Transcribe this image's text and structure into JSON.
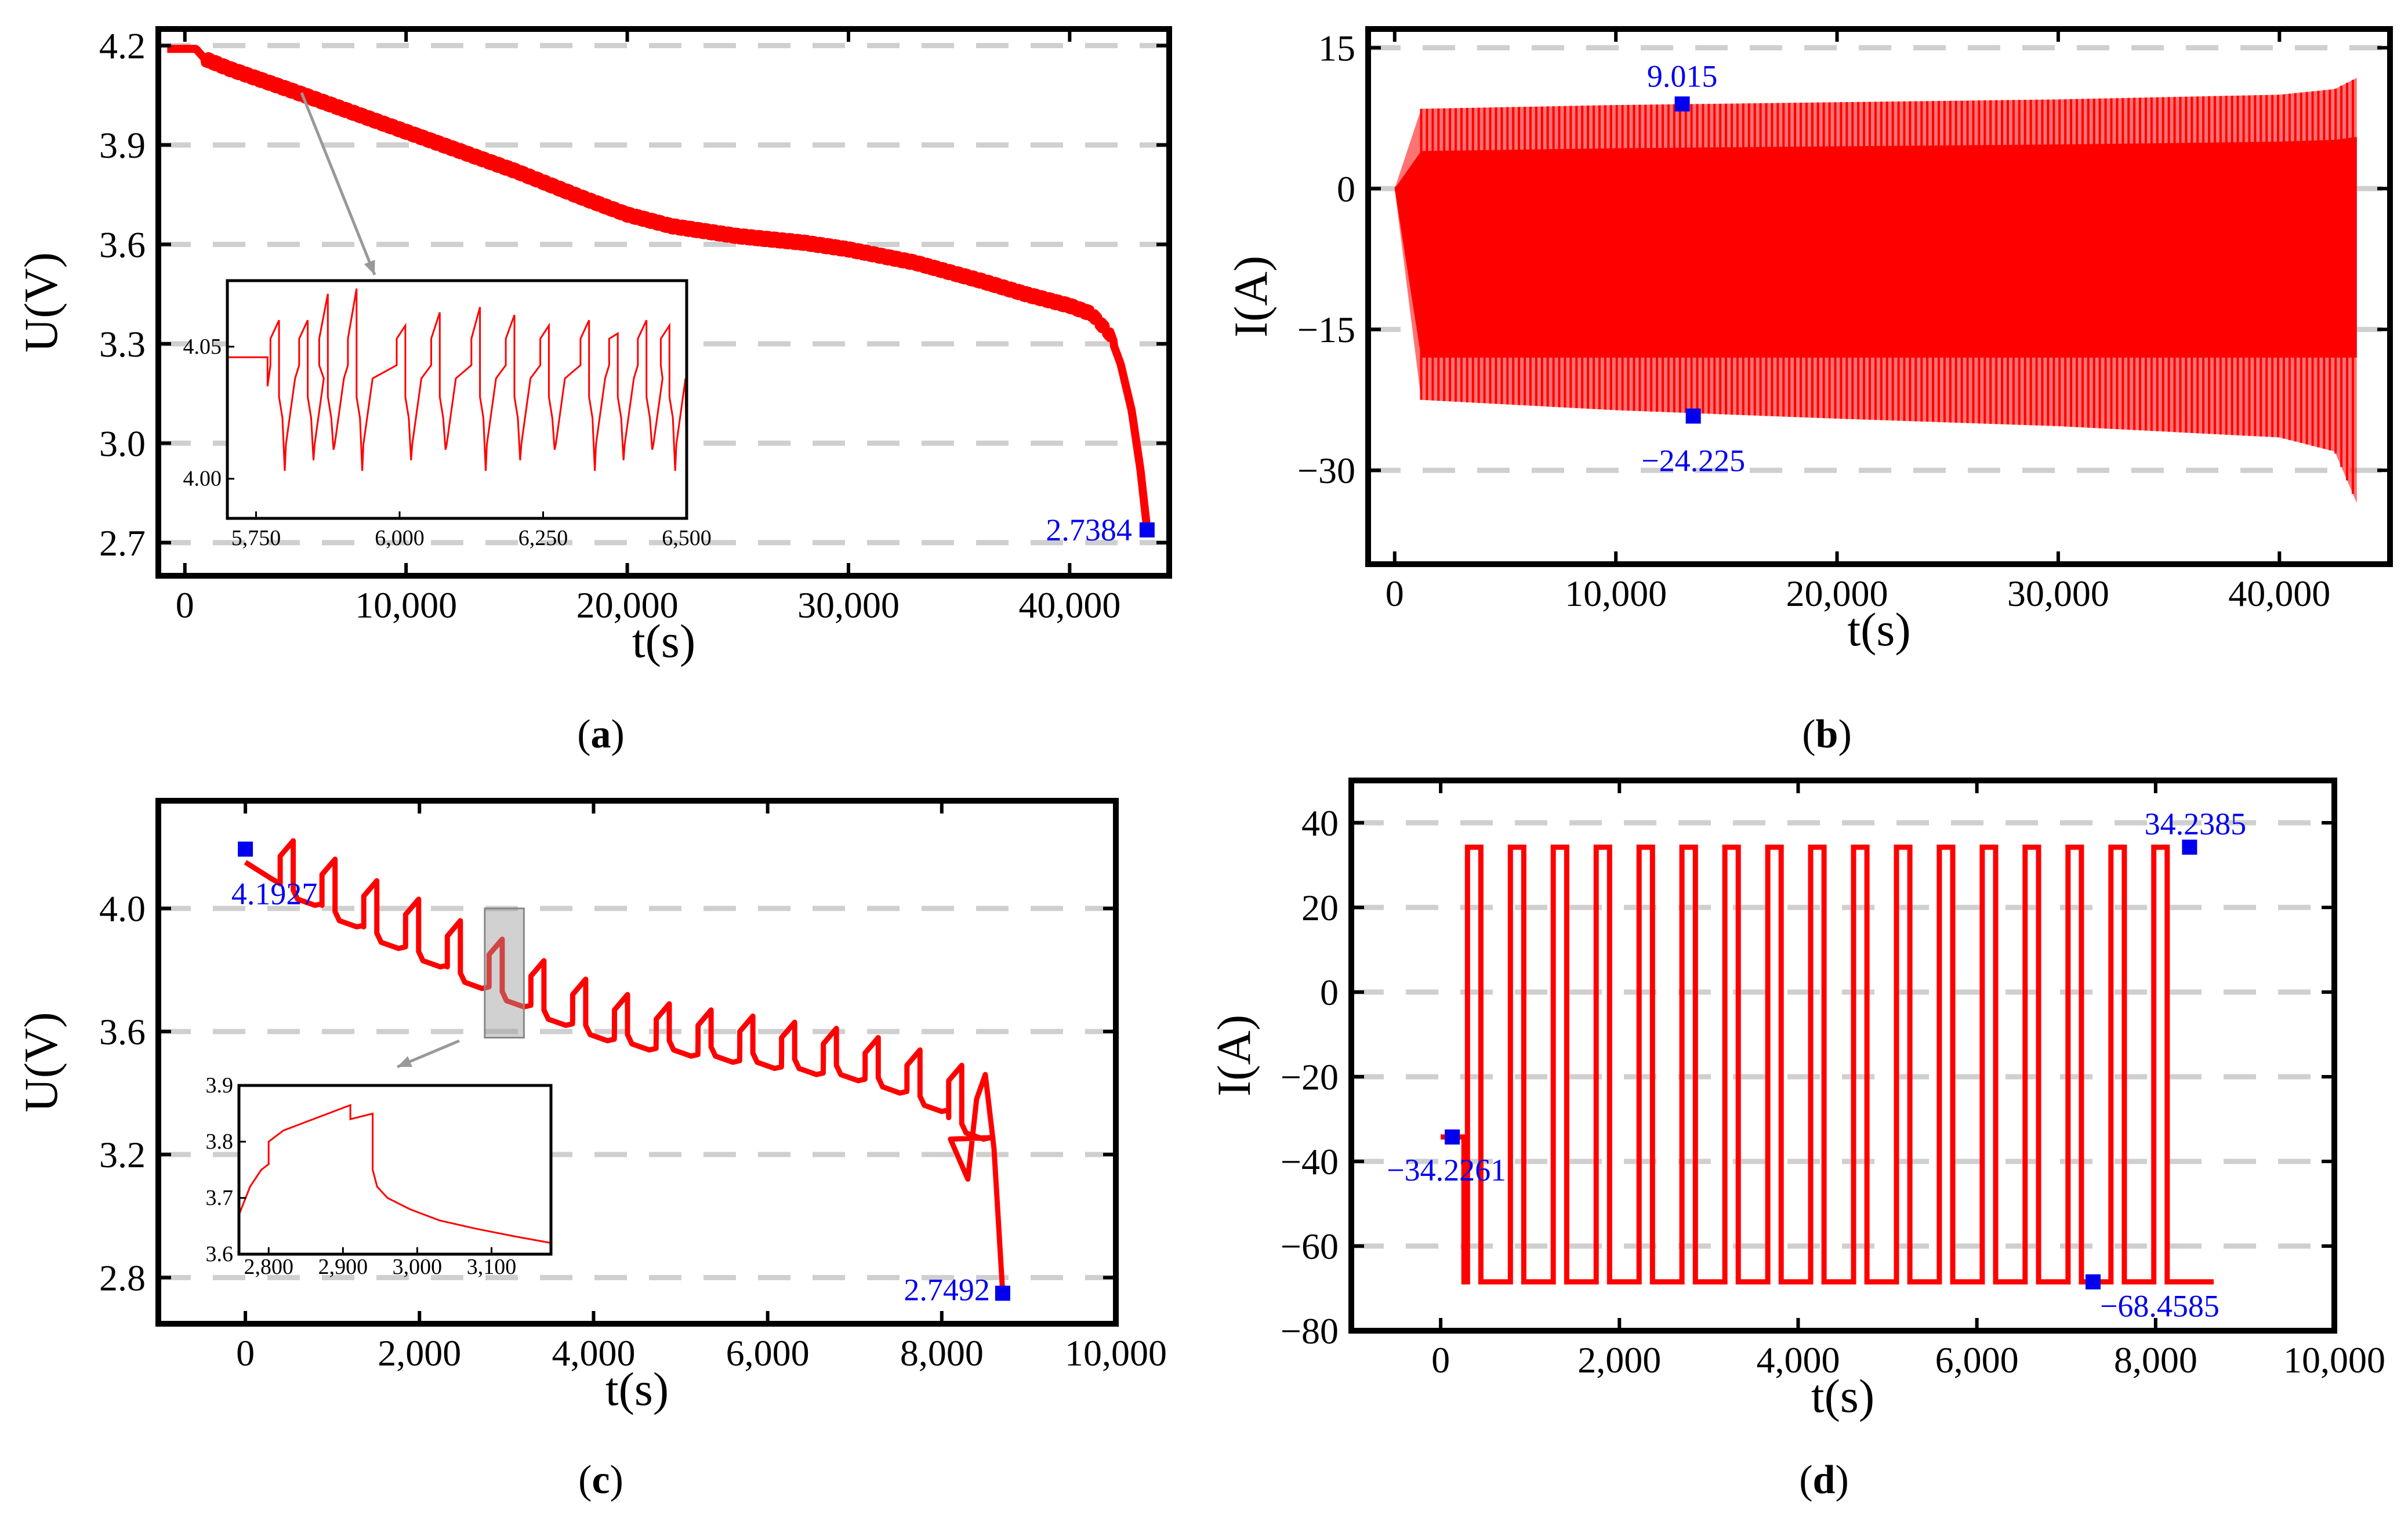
{
  "chart_data": [
    {
      "panel": "(a)",
      "panel_letter": "a",
      "type": "line",
      "xlabel": "t(s)",
      "ylabel": "U(V)",
      "xlim": [
        -1200,
        44500
      ],
      "ylim": [
        2.6,
        4.25
      ],
      "xticks": [
        0,
        10000,
        20000,
        30000,
        40000
      ],
      "xtick_labels": [
        "0",
        "10,000",
        "20,000",
        "30,000",
        "40,000"
      ],
      "yticks": [
        2.7,
        3.0,
        3.3,
        3.6,
        3.9,
        4.2
      ],
      "ytick_labels": [
        "2.7",
        "3.0",
        "3.3",
        "3.6",
        "3.9",
        "4.2"
      ],
      "grid": "horizontal dashed",
      "series": [
        {
          "name": "terminal voltage",
          "color": "#ff0000",
          "x": [
            -800,
            0,
            500,
            900,
            2000,
            5000,
            10000,
            15000,
            18000,
            20000,
            22000,
            25000,
            28000,
            30000,
            33000,
            36000,
            38000,
            40000,
            41000,
            41800,
            42300,
            42800,
            43200,
            43500
          ],
          "y": [
            4.19,
            4.19,
            4.19,
            4.16,
            4.13,
            4.06,
            3.94,
            3.82,
            3.74,
            3.69,
            3.655,
            3.625,
            3.605,
            3.585,
            3.545,
            3.49,
            3.45,
            3.415,
            3.39,
            3.33,
            3.24,
            3.1,
            2.92,
            2.74
          ],
          "ripple": 0.025
        }
      ],
      "annotations": [
        {
          "label": "2.7384",
          "x": 43500,
          "y": 2.7384
        }
      ],
      "inset": {
        "xlim": [
          5700,
          6500
        ],
        "ylim": [
          3.985,
          4.075
        ],
        "xticks": [
          5750,
          6000,
          6250,
          6500
        ],
        "xtick_labels": [
          "5,750",
          "6,000",
          "6,250",
          "6,500"
        ],
        "yticks": [
          4.0,
          4.05
        ],
        "ytick_labels": [
          "4.00",
          "4.05"
        ],
        "pointer_from": [
          6000,
          4.0
        ]
      }
    },
    {
      "panel": "(b)",
      "panel_letter": "b",
      "type": "line",
      "xlabel": "t(s)",
      "ylabel": "I(A)",
      "xlim": [
        -1200,
        45000
      ],
      "ylim": [
        -40,
        17
      ],
      "xticks": [
        0,
        10000,
        20000,
        30000,
        40000
      ],
      "xtick_labels": [
        "0",
        "10,000",
        "20,000",
        "30,000",
        "40,000"
      ],
      "yticks": [
        -30,
        -15,
        0,
        15
      ],
      "ytick_labels": [
        "−30",
        "−15",
        "0",
        "15"
      ],
      "grid": "horizontal dashed",
      "series": [
        {
          "name": "current",
          "color": "#ff0000",
          "x": [
            0,
            1200,
            10000,
            20000,
            30000,
            40000,
            42500,
            43500
          ],
          "upper": [
            0,
            8.5,
            8.9,
            9.2,
            9.5,
            10.0,
            10.6,
            11.8
          ],
          "lower": [
            0,
            -22.5,
            -23.6,
            -24.5,
            -25.3,
            -26.5,
            -28.0,
            -33.5
          ],
          "band_upper": [
            0,
            4.0,
            4.3,
            4.5,
            4.7,
            5.0,
            5.2,
            5.5
          ],
          "band_lower": [
            0,
            -18.0,
            -18.0,
            -18.0,
            -18.0,
            -18.0,
            -18.0,
            -18.0
          ]
        }
      ],
      "annotations": [
        {
          "label": "9.015",
          "x": 13000,
          "y": 9.015
        },
        {
          "label": "−24.225",
          "x": 13500,
          "y": -24.225
        }
      ]
    },
    {
      "panel": "(c)",
      "panel_letter": "c",
      "type": "line",
      "xlabel": "t(s)",
      "ylabel": "U(V)",
      "xlim": [
        -1000,
        10000
      ],
      "ylim": [
        2.65,
        4.35
      ],
      "xticks": [
        0,
        2000,
        4000,
        6000,
        8000,
        10000
      ],
      "xtick_labels": [
        "0",
        "2,000",
        "4,000",
        "6,000",
        "8,000",
        "10,000"
      ],
      "yticks": [
        2.8,
        3.2,
        3.6,
        4.0,
        4.4
      ],
      "ytick_labels": [
        "2.8",
        "3.2",
        "3.6",
        "4.0",
        "4.4"
      ],
      "grid": "horizontal dashed",
      "series": [
        {
          "name": "terminal voltage",
          "color": "#ff0000",
          "pulse_period": 480,
          "pulse_starts": [
            400,
            880,
            1360,
            1840,
            2320,
            2800,
            3280,
            3760,
            4240,
            4720,
            5200,
            5680,
            6160,
            6640,
            7120,
            7600,
            8080
          ],
          "pulse_peaks": [
            4.22,
            4.16,
            4.09,
            4.03,
            3.96,
            3.9,
            3.83,
            3.77,
            3.72,
            3.69,
            3.67,
            3.65,
            3.63,
            3.61,
            3.58,
            3.54,
            3.49
          ],
          "pulse_mins": [
            4.01,
            3.94,
            3.87,
            3.81,
            3.74,
            3.68,
            3.62,
            3.57,
            3.54,
            3.52,
            3.5,
            3.48,
            3.46,
            3.44,
            3.4,
            3.34,
            3.25
          ],
          "tail_x": [
            8100,
            8300,
            8400,
            8500,
            8600,
            8700
          ],
          "tail_y": [
            3.25,
            3.12,
            3.38,
            3.46,
            3.22,
            2.75
          ]
        }
      ],
      "annotations": [
        {
          "label": "4.1927",
          "x": 0,
          "y": 4.1927
        },
        {
          "label": "2.7492",
          "x": 8700,
          "y": 2.7492
        }
      ],
      "highlight": {
        "x": [
          2750,
          3200
        ],
        "y": [
          3.58,
          4.0
        ]
      },
      "inset": {
        "xlim": [
          2760,
          3180
        ],
        "ylim": [
          3.6,
          3.9
        ],
        "xticks": [
          2800,
          2900,
          3000,
          3100
        ],
        "xtick_labels": [
          "2,800",
          "2,900",
          "3,000",
          "3,100"
        ],
        "yticks": [
          3.6,
          3.7,
          3.8,
          3.9
        ],
        "ytick_labels": [
          "3.6",
          "3.7",
          "3.8",
          "3.9"
        ],
        "x": [
          2760,
          2775,
          2790,
          2800,
          2800,
          2810,
          2820,
          2840,
          2880,
          2910,
          2910,
          2940,
          2940,
          2946,
          2960,
          2990,
          3030,
          3080,
          3130,
          3180
        ],
        "y": [
          3.67,
          3.72,
          3.75,
          3.76,
          3.8,
          3.81,
          3.82,
          3.83,
          3.85,
          3.865,
          3.84,
          3.85,
          3.75,
          3.72,
          3.7,
          3.68,
          3.66,
          3.645,
          3.632,
          3.62
        ]
      }
    },
    {
      "panel": "(d)",
      "panel_letter": "d",
      "type": "line",
      "xlabel": "t(s)",
      "ylabel": "I(A)",
      "xlim": [
        -1000,
        10000
      ],
      "ylim": [
        -80,
        50
      ],
      "xticks": [
        0,
        2000,
        4000,
        6000,
        8000,
        10000
      ],
      "xtick_labels": [
        "0",
        "2,000",
        "4,000",
        "6,000",
        "8,000",
        "10,000"
      ],
      "yticks": [
        -80,
        -60,
        -40,
        -20,
        0,
        20,
        40
      ],
      "ytick_labels": [
        "−80",
        "−60",
        "−40",
        "−20",
        "0",
        "20",
        "40"
      ],
      "grid": "horizontal dashed",
      "series": [
        {
          "name": "current",
          "color": "#ff0000",
          "start_x": 0,
          "start_y": -34.2261,
          "first_step_x": 260,
          "high": 34.2385,
          "low": -68.4585,
          "period": 480,
          "high_width": 150,
          "count": 17,
          "end_x": 8650
        }
      ],
      "annotations": [
        {
          "label": "−34.2261",
          "x": 130,
          "y": -34.2261
        },
        {
          "label": "−68.4585",
          "x": 7300,
          "y": -68.4585
        },
        {
          "label": "34.2385",
          "x": 8380,
          "y": 34.2385
        }
      ]
    }
  ]
}
